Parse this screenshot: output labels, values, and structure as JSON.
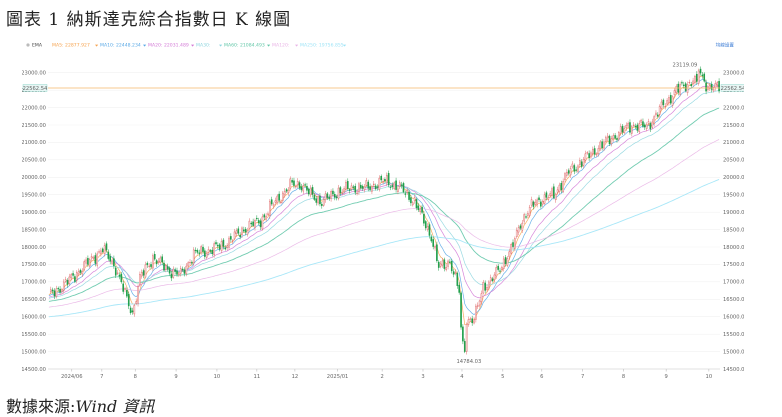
{
  "figure": {
    "title": "圖表 1 納斯達克綜合指數日 K 線圖",
    "source_label": "數據來源:",
    "source_name": "Wind 資訊"
  },
  "colors": {
    "up": "#e06c6c",
    "down": "#1f9e4a",
    "ma5": "#f6a34f",
    "ma10": "#5aa9e6",
    "ma20": "#d37ad6",
    "ma30": "#8fd6df",
    "ma60": "#63c7a8",
    "ma120": "#e9b4e6",
    "ma250": "#9fe4f7",
    "price_line": "#f5b96a",
    "link": "#3a7bd5"
  },
  "chart_data": {
    "type": "candlestick",
    "legend": {
      "prefix": "EMA",
      "items": [
        {
          "label": "MA5:",
          "value": "22877.927",
          "color": "#f6a34f"
        },
        {
          "label": "MA10:",
          "value": "22448.234",
          "color": "#5aa9e6"
        },
        {
          "label": "MA20:",
          "value": "22031.489",
          "color": "#d37ad6"
        },
        {
          "label": "MA30:",
          "value": "",
          "color": "#8fd6df"
        },
        {
          "label": "MA60:",
          "value": "21084.493",
          "color": "#63c7a8"
        },
        {
          "label": "MA120:",
          "value": "",
          "color": "#e9b4e6"
        },
        {
          "label": "MA250:",
          "value": "19756.855",
          "color": "#9fe4f7"
        }
      ],
      "settings_link": "均線設置"
    },
    "y_axis": {
      "range": [
        14500,
        23250
      ],
      "ticks": [
        14500,
        15000,
        15500,
        16000,
        16500,
        17000,
        17500,
        18000,
        18500,
        19000,
        19500,
        20000,
        20500,
        21000,
        21500,
        22000,
        22500,
        23000
      ],
      "tick_labels": [
        "14500.00",
        "15000.00",
        "15500.00",
        "16000.00",
        "16500.00",
        "17000.00",
        "17500.00",
        "18000.00",
        "18500.00",
        "19000.00",
        "19500.00",
        "20000.00",
        "20500.00",
        "21000.00",
        "21500.00",
        "22000.00",
        "22500.00",
        "23000.00"
      ]
    },
    "x_axis": {
      "tick_labels": [
        "2024/06",
        "7",
        "8",
        "9",
        "10",
        "11",
        "12",
        "2025/01",
        "2",
        "3",
        "4",
        "5",
        "6",
        "7",
        "8",
        "9",
        "10"
      ],
      "tick_positions": [
        12.8,
        29,
        47,
        69,
        91,
        112.5,
        133,
        156,
        180,
        202,
        223,
        245,
        266,
        288,
        310,
        333,
        356
      ]
    },
    "current_price": {
      "value": 22562.54,
      "label": "22562.54"
    },
    "annotations": [
      {
        "text": "23119.09",
        "x": 348.5,
        "y": 23119.09
      },
      {
        "text": "14784.03",
        "x": 223.5,
        "y": 14784.03
      }
    ],
    "anchors": [
      [
        0,
        16600
      ],
      [
        10,
        17000
      ],
      [
        19,
        17450
      ],
      [
        29,
        17950
      ],
      [
        36,
        17400
      ],
      [
        42,
        16500
      ],
      [
        45,
        16100
      ],
      [
        49,
        17100
      ],
      [
        56,
        17700
      ],
      [
        64,
        17350
      ],
      [
        71,
        17200
      ],
      [
        78,
        17800
      ],
      [
        86,
        17900
      ],
      [
        94,
        18050
      ],
      [
        106,
        18550
      ],
      [
        114,
        18750
      ],
      [
        121,
        19250
      ],
      [
        131,
        19800
      ],
      [
        136,
        19800
      ],
      [
        141,
        19500
      ],
      [
        147,
        19300
      ],
      [
        156,
        19600
      ],
      [
        163,
        19700
      ],
      [
        171,
        19700
      ],
      [
        181,
        19900
      ],
      [
        189,
        19700
      ],
      [
        197,
        19300
      ],
      [
        206,
        18300
      ],
      [
        210,
        17400
      ],
      [
        216,
        17600
      ],
      [
        221,
        16700
      ],
      [
        225,
        15900
      ],
      [
        229,
        15900
      ],
      [
        234,
        16900
      ],
      [
        238,
        17000
      ],
      [
        244,
        17500
      ],
      [
        249,
        17900
      ],
      [
        254,
        18700
      ],
      [
        262,
        19300
      ],
      [
        272,
        19500
      ],
      [
        280,
        20150
      ],
      [
        288,
        20500
      ],
      [
        297,
        20900
      ],
      [
        305,
        21200
      ],
      [
        314,
        21500
      ],
      [
        322,
        21450
      ],
      [
        330,
        22000
      ],
      [
        338,
        22500
      ],
      [
        345,
        22700
      ],
      [
        350,
        23000
      ],
      [
        355,
        22600
      ],
      [
        359,
        22560
      ]
    ]
  }
}
